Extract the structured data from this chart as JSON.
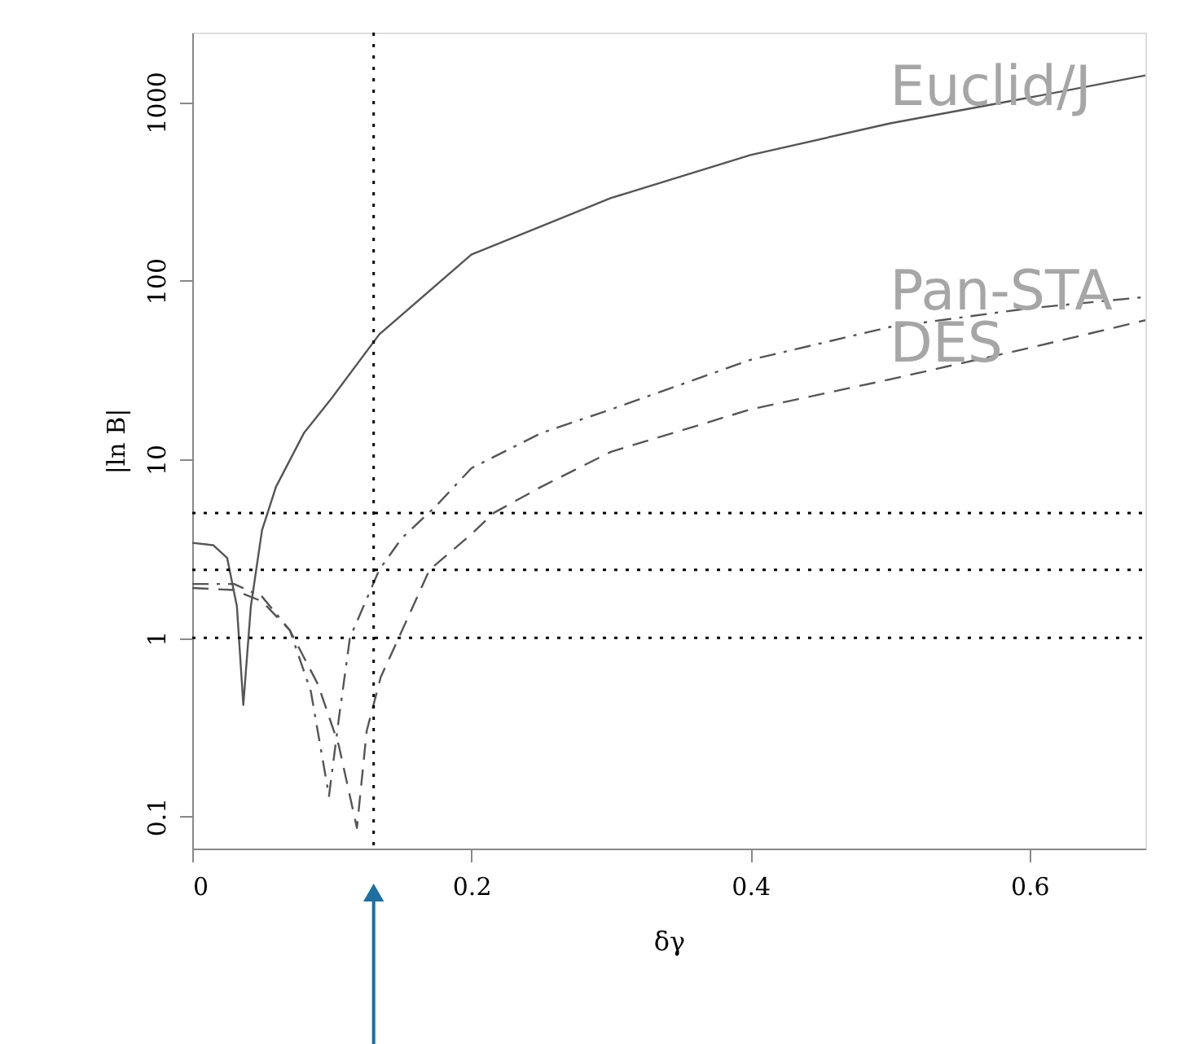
{
  "chart_data": {
    "type": "line",
    "xlabel": "δγ",
    "ylabel": "|ln B|",
    "log": "y",
    "xlim": [
      0,
      0.683
    ],
    "ylim": [
      0.066,
      2450
    ],
    "xticks": [
      0,
      0.2,
      0.4,
      0.6
    ],
    "yticks": [
      0.1,
      1,
      10,
      100,
      1000
    ],
    "grid": false,
    "marker": "none",
    "series": [
      {
        "name": "Euclid/J",
        "color": "#555555",
        "line_style": "solid",
        "x": [
          0,
          0.015,
          0.025,
          0.032,
          0.0366,
          0.042,
          0.05,
          0.06,
          0.08,
          0.1,
          0.134,
          0.2,
          0.3,
          0.4,
          0.5,
          0.6,
          0.683
        ],
        "values": [
          3.4,
          3.3,
          2.8,
          1.5,
          0.42,
          1.5,
          4,
          7,
          14,
          22,
          50,
          140,
          290,
          505,
          760,
          1060,
          1410
        ]
      },
      {
        "name": "Pan-STA",
        "color": "#555555",
        "line_style": "dashdot",
        "x": [
          0,
          0.03,
          0.05,
          0.07,
          0.085,
          0.098,
          0.105,
          0.113,
          0.134,
          0.15,
          0.175,
          0.2,
          0.25,
          0.3,
          0.4,
          0.5,
          0.6,
          0.683
        ],
        "values": [
          2.0,
          2.0,
          1.7,
          1.1,
          0.5,
          0.13,
          0.35,
          1,
          2.4,
          3.6,
          5.5,
          8.9,
          14,
          19,
          36,
          55,
          70,
          81
        ]
      },
      {
        "name": "DES",
        "color": "#555555",
        "line_style": "dashed",
        "x": [
          0,
          0.03,
          0.05,
          0.07,
          0.09,
          0.105,
          0.118,
          0.125,
          0.135,
          0.148,
          0.17,
          0.2,
          0.216,
          0.25,
          0.3,
          0.4,
          0.5,
          0.6,
          0.683
        ],
        "values": [
          1.9,
          1.85,
          1.6,
          1.1,
          0.55,
          0.25,
          0.086,
          0.3,
          0.6,
          1,
          2.4,
          3.8,
          5,
          7,
          11,
          19,
          28,
          42,
          60
        ]
      }
    ],
    "ref_lines": [
      {
        "axis": "y",
        "value": 5,
        "line_style": "dotted"
      },
      {
        "axis": "y",
        "value": 2.4,
        "line_style": "dotted"
      },
      {
        "axis": "y",
        "value": 1,
        "line_style": "dotted"
      },
      {
        "axis": "x",
        "value": 0.13,
        "line_style": "dotted"
      }
    ]
  }
}
